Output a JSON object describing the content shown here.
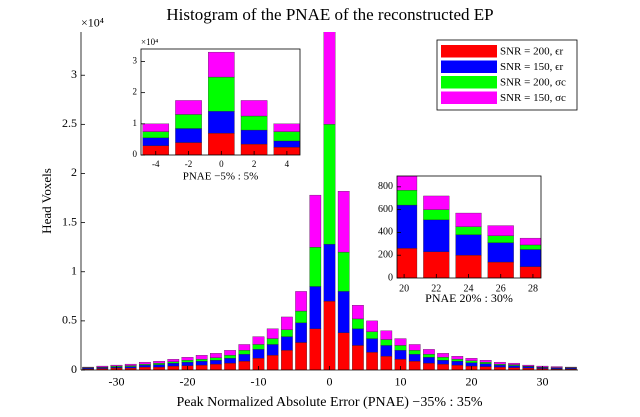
{
  "chart_data": [
    {
      "type": "bar",
      "stacked": true,
      "title": "Histogram of the PNAE of the reconstructed EP",
      "x_label": "Peak Normalized Absolute Error (PNAE) −35% : 35%",
      "y_label": "Head Voxels",
      "y_multiplier": "×10⁴",
      "x": [
        -34,
        -32,
        -30,
        -28,
        -26,
        -24,
        -22,
        -20,
        -18,
        -16,
        -14,
        -12,
        -10,
        -8,
        -6,
        -4,
        -2,
        0,
        2,
        4,
        6,
        8,
        10,
        12,
        14,
        16,
        18,
        20,
        22,
        24,
        26,
        28,
        30,
        32,
        34
      ],
      "xlim": [
        -35,
        35
      ],
      "xticks": [
        -30,
        -20,
        -10,
        0,
        10,
        20,
        30
      ],
      "ylim": [
        0,
        3.44
      ],
      "yticks": [
        0,
        0.5,
        1,
        1.5,
        2,
        2.5,
        3
      ],
      "legend": "upper right",
      "series": [
        {
          "name": "SNR = 200, ϵr",
          "color": "#ff0000",
          "values": [
            0.01,
            0.015,
            0.02,
            0.02,
            0.03,
            0.03,
            0.04,
            0.045,
            0.05,
            0.06,
            0.07,
            0.09,
            0.12,
            0.15,
            0.2,
            0.28,
            0.42,
            0.7,
            0.38,
            0.25,
            0.18,
            0.14,
            0.11,
            0.09,
            0.07,
            0.06,
            0.05,
            0.04,
            0.035,
            0.03,
            0.025,
            0.02,
            0.015,
            0.01,
            0.01
          ]
        },
        {
          "name": "SNR = 150, ϵr",
          "color": "#0000ff",
          "values": [
            0.01,
            0.01,
            0.01,
            0.015,
            0.02,
            0.025,
            0.03,
            0.035,
            0.04,
            0.04,
            0.05,
            0.07,
            0.09,
            0.11,
            0.14,
            0.2,
            0.43,
            0.58,
            0.42,
            0.17,
            0.14,
            0.11,
            0.09,
            0.07,
            0.06,
            0.04,
            0.04,
            0.035,
            0.03,
            0.02,
            0.02,
            0.015,
            0.01,
            0.01,
            0.01
          ]
        },
        {
          "name": "SNR = 200, σc",
          "color": "#00ff00",
          "values": [
            0.005,
            0.005,
            0.01,
            0.01,
            0.01,
            0.015,
            0.015,
            0.02,
            0.02,
            0.025,
            0.03,
            0.04,
            0.05,
            0.06,
            0.07,
            0.12,
            0.4,
            1.22,
            0.4,
            0.1,
            0.07,
            0.06,
            0.05,
            0.04,
            0.03,
            0.03,
            0.02,
            0.02,
            0.015,
            0.01,
            0.01,
            0.005,
            0.005,
            0.005,
            0.005
          ]
        },
        {
          "name": "SNR = 150, σc",
          "color": "#ff00ff",
          "values": [
            0.005,
            0.01,
            0.01,
            0.015,
            0.02,
            0.02,
            0.025,
            0.03,
            0.04,
            0.045,
            0.05,
            0.06,
            0.08,
            0.1,
            0.13,
            0.2,
            0.53,
            1.1,
            0.62,
            0.14,
            0.11,
            0.09,
            0.07,
            0.06,
            0.05,
            0.04,
            0.03,
            0.025,
            0.02,
            0.02,
            0.015,
            0.01,
            0.01,
            0.01,
            0.005
          ]
        }
      ]
    },
    {
      "type": "bar",
      "stacked": true,
      "x_label": "PNAE −5% : 5%",
      "y_multiplier": "×10⁴",
      "x": [
        -4,
        -2,
        0,
        2,
        4
      ],
      "xlim": [
        -4.9,
        4.8
      ],
      "xticks": [
        -4,
        -2,
        0,
        2,
        4
      ],
      "ylim": [
        0,
        3.4
      ],
      "yticks": [
        0,
        1,
        2,
        3
      ],
      "series": [
        {
          "color": "#ff0000",
          "values": [
            0.3,
            0.4,
            0.7,
            0.35,
            0.25
          ]
        },
        {
          "color": "#0000ff",
          "values": [
            0.25,
            0.45,
            0.7,
            0.45,
            0.2
          ]
        },
        {
          "color": "#00ff00",
          "values": [
            0.2,
            0.45,
            1.1,
            0.45,
            0.3
          ]
        },
        {
          "color": "#ff00ff",
          "values": [
            0.25,
            0.45,
            0.8,
            0.5,
            0.25
          ]
        }
      ]
    },
    {
      "type": "bar",
      "stacked": true,
      "x_label": "PNAE 20% : 30%",
      "x": [
        20,
        22,
        24,
        26,
        28
      ],
      "xlim": [
        19.56,
        28.5
      ],
      "xticks": [
        20,
        22,
        24,
        26,
        28
      ],
      "ylim": [
        0,
        895
      ],
      "yticks": [
        0,
        200,
        400,
        600,
        800
      ],
      "series": [
        {
          "color": "#ff0000",
          "values": [
            260,
            230,
            200,
            140,
            100
          ]
        },
        {
          "color": "#0000ff",
          "values": [
            380,
            280,
            180,
            170,
            150
          ]
        },
        {
          "color": "#00ff00",
          "values": [
            130,
            90,
            70,
            60,
            40
          ]
        },
        {
          "color": "#ff00ff",
          "values": [
            200,
            120,
            120,
            90,
            60
          ]
        }
      ]
    }
  ]
}
